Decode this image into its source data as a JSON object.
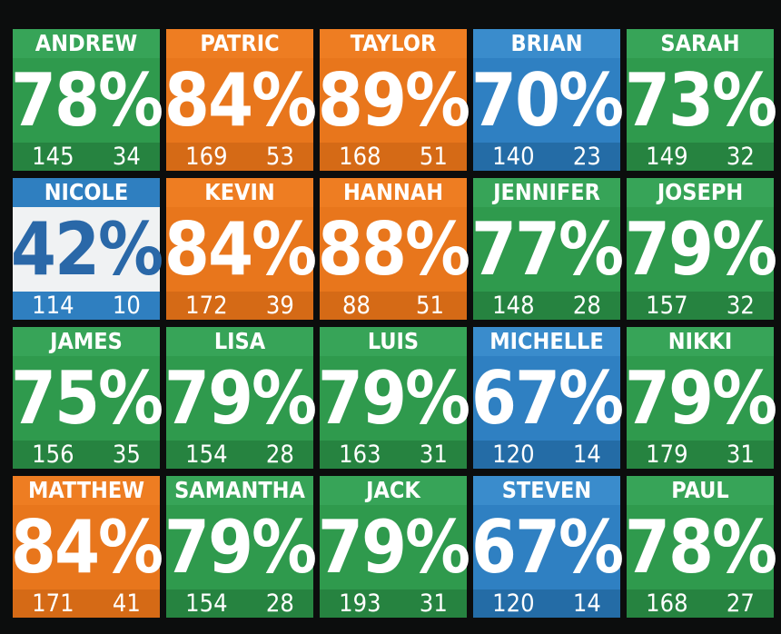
{
  "cards": [
    {
      "name": "ANDREW",
      "percent": "78%",
      "left": "145",
      "right": "34",
      "theme": "green"
    },
    {
      "name": "PATRIC",
      "percent": "84%",
      "left": "169",
      "right": "53",
      "theme": "orange"
    },
    {
      "name": "TAYLOR",
      "percent": "89%",
      "left": "168",
      "right": "51",
      "theme": "orange"
    },
    {
      "name": "BRIAN",
      "percent": "70%",
      "left": "140",
      "right": "23",
      "theme": "blue"
    },
    {
      "name": "SARAH",
      "percent": "73%",
      "left": "149",
      "right": "32",
      "theme": "green"
    },
    {
      "name": "NICOLE",
      "percent": "42%",
      "left": "114",
      "right": "10",
      "theme": "white"
    },
    {
      "name": "KEVIN",
      "percent": "84%",
      "left": "172",
      "right": "39",
      "theme": "orange"
    },
    {
      "name": "HANNAH",
      "percent": "88%",
      "left": "88",
      "right": "51",
      "theme": "orange"
    },
    {
      "name": "JENNIFER",
      "percent": "77%",
      "left": "148",
      "right": "28",
      "theme": "green"
    },
    {
      "name": "JOSEPH",
      "percent": "79%",
      "left": "157",
      "right": "32",
      "theme": "green"
    },
    {
      "name": "JAMES",
      "percent": "75%",
      "left": "156",
      "right": "35",
      "theme": "green"
    },
    {
      "name": "LISA",
      "percent": "79%",
      "left": "154",
      "right": "28",
      "theme": "green"
    },
    {
      "name": "LUIS",
      "percent": "79%",
      "left": "163",
      "right": "31",
      "theme": "green"
    },
    {
      "name": "MICHELLE",
      "percent": "67%",
      "left": "120",
      "right": "14",
      "theme": "blue"
    },
    {
      "name": "NIKKI",
      "percent": "79%",
      "left": "179",
      "right": "31",
      "theme": "green"
    },
    {
      "name": "MATTHEW",
      "percent": "84%",
      "left": "171",
      "right": "41",
      "theme": "orange"
    },
    {
      "name": "SAMANTHA",
      "percent": "79%",
      "left": "154",
      "right": "28",
      "theme": "green"
    },
    {
      "name": "JACK",
      "percent": "79%",
      "left": "193",
      "right": "31",
      "theme": "green"
    },
    {
      "name": "STEVEN",
      "percent": "67%",
      "left": "120",
      "right": "14",
      "theme": "blue"
    },
    {
      "name": "PAUL",
      "percent": "78%",
      "left": "168",
      "right": "27",
      "theme": "green"
    }
  ]
}
